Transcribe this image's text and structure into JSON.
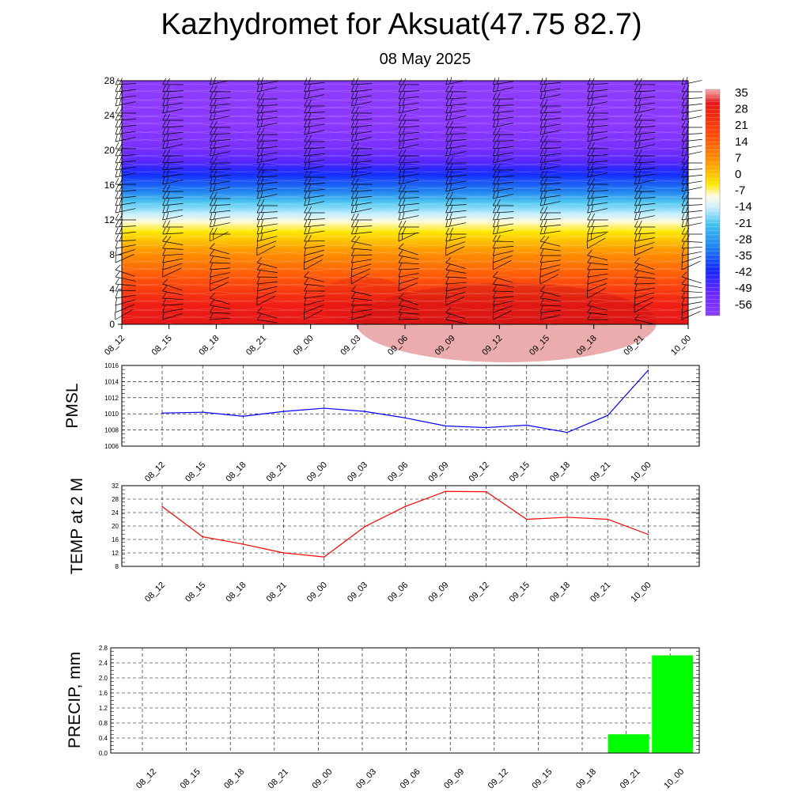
{
  "title": "Kazhydromet for Aksuat(47.75 82.7)",
  "subtitle": "08 May 2025",
  "chart_data": [
    {
      "type": "heatmap",
      "name": "vertical temperature cross-section with wind barbs",
      "x_ticks": [
        "08_12",
        "08_15",
        "08_18",
        "08_21",
        "09_00",
        "09_03",
        "09_06",
        "09_09",
        "09_12",
        "09_15",
        "09_18",
        "09_21",
        "10_00"
      ],
      "y_ticks": [
        0,
        4,
        8,
        12,
        16,
        20,
        24,
        28
      ],
      "ylim": [
        0,
        28
      ],
      "colorbar_labels": [
        35,
        28,
        21,
        14,
        7,
        0,
        -7,
        -14,
        -21,
        -28,
        -35,
        -42,
        -49,
        -56
      ],
      "colorbar_colors": {
        "top": "#f4b0b0",
        "warm": "#e01010",
        "orange": "#ff8c00",
        "yellow": "#fff000",
        "white": "#ffffff",
        "cyan": "#1ec8f0",
        "blue": "#1428ff",
        "violet": "#8c28ff"
      }
    },
    {
      "type": "line",
      "ylabel": "PMSL",
      "x": [
        "08_12",
        "08_15",
        "08_18",
        "08_21",
        "09_00",
        "09_03",
        "09_06",
        "09_09",
        "09_12",
        "09_15",
        "09_18",
        "09_21",
        "10_00"
      ],
      "series": [
        {
          "values": [
            1010.1,
            1010.2,
            1009.7,
            1010.3,
            1010.7,
            1010.3,
            1009.5,
            1008.5,
            1008.3,
            1008.6,
            1007.7,
            1009.8,
            1015.4
          ],
          "color": "#0000ff"
        }
      ],
      "y_ticks": [
        1006,
        1008,
        1010,
        1012,
        1014,
        1016
      ],
      "ylim": [
        1006,
        1016
      ]
    },
    {
      "type": "line",
      "ylabel": "TEMP at 2 M",
      "x": [
        "08_12",
        "08_15",
        "08_18",
        "08_21",
        "09_00",
        "09_03",
        "09_06",
        "09_09",
        "09_12",
        "09_15",
        "09_18",
        "09_21",
        "10_00"
      ],
      "series": [
        {
          "values": [
            25.8,
            16.8,
            14.6,
            12.0,
            10.8,
            19.8,
            25.8,
            30.3,
            30.2,
            22.0,
            22.6,
            22.0,
            17.5
          ],
          "color": "#ff0000"
        }
      ],
      "y_ticks": [
        8,
        12,
        16,
        20,
        24,
        28,
        32
      ],
      "ylim": [
        8,
        32
      ]
    },
    {
      "type": "bar",
      "ylabel": "PRECIP, mm",
      "categories": [
        "08_12",
        "08_15",
        "08_18",
        "08_21",
        "09_00",
        "09_03",
        "09_06",
        "09_09",
        "09_12",
        "09_15",
        "09_18",
        "09_21",
        "10_00"
      ],
      "values": [
        0,
        0,
        0,
        0,
        0,
        0,
        0,
        0,
        0,
        0,
        0,
        0.5,
        2.6
      ],
      "color": "#00ff00",
      "y_ticks": [
        "0.0",
        "0.4",
        "0.8",
        "1.2",
        "1.6",
        "2.0",
        "2.4",
        "2.8"
      ],
      "ylim": [
        0,
        2.8
      ]
    }
  ]
}
